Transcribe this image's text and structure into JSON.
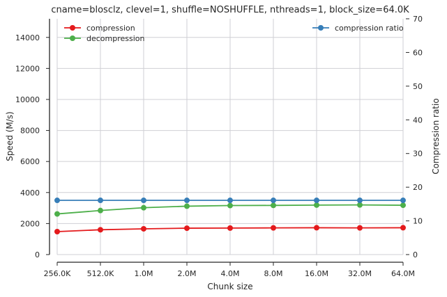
{
  "chart_data": {
    "type": "line",
    "title": "cname=blosclz, clevel=1, shuffle=NOSHUFFLE, nthreads=1, block_size=64.0K",
    "xlabel": "Chunk size",
    "ylabel": "Speed (M/s)",
    "y2label": "Compression ratio",
    "categories": [
      "256.0K",
      "512.0K",
      "1.0M",
      "2.0M",
      "4.0M",
      "8.0M",
      "16.0M",
      "32.0M",
      "64.0M"
    ],
    "ylim": [
      0,
      15200
    ],
    "y2lim": [
      0,
      70
    ],
    "yticks": [
      0,
      2000,
      4000,
      6000,
      8000,
      10000,
      12000,
      14000
    ],
    "y2ticks": [
      0,
      10,
      20,
      30,
      40,
      50,
      60,
      70
    ],
    "grid": true,
    "series": [
      {
        "name": "compression",
        "axis": "left",
        "color": "#e41a1c",
        "values": [
          1480,
          1600,
          1660,
          1700,
          1710,
          1720,
          1730,
          1720,
          1730
        ]
      },
      {
        "name": "decompression",
        "axis": "left",
        "color": "#4daf4a",
        "values": [
          2620,
          2840,
          3020,
          3120,
          3160,
          3170,
          3190,
          3200,
          3180
        ]
      },
      {
        "name": "compression ratio",
        "axis": "right",
        "color": "#377eb8",
        "values": [
          16.1,
          16.1,
          16.1,
          16.1,
          16.1,
          16.1,
          16.1,
          16.1,
          16.1
        ]
      }
    ],
    "legend_left": "upper-left",
    "legend_right": "upper-right"
  }
}
